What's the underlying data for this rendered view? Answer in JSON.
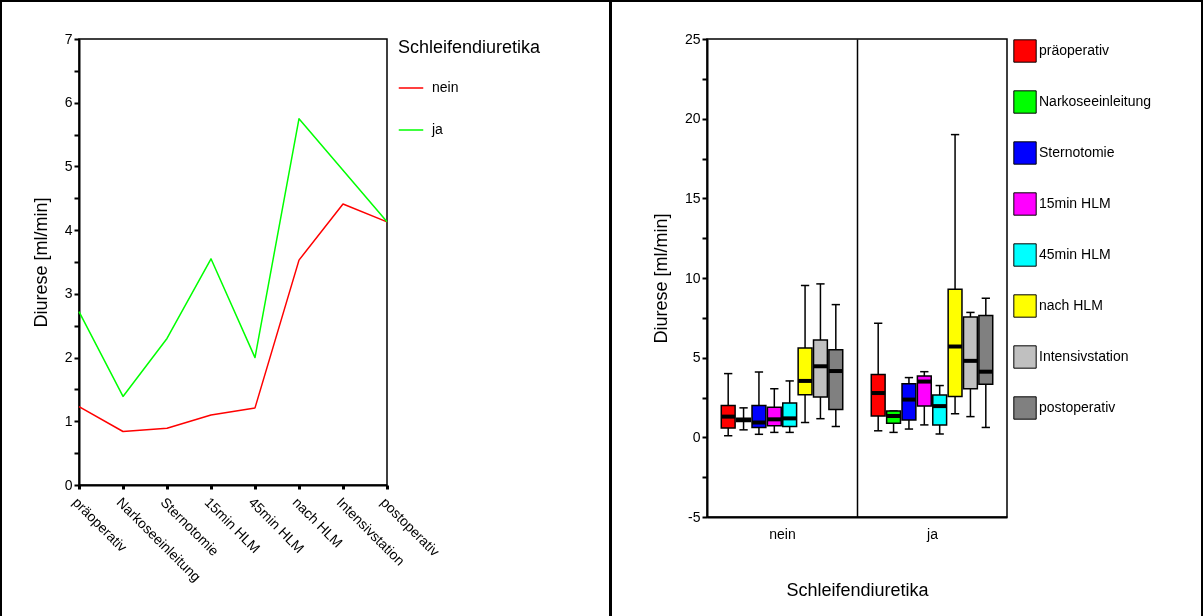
{
  "chart_data": [
    {
      "type": "line",
      "xlabel": null,
      "ylabel": "Diurese [ml/min]",
      "legend_title": "Schleifendiuretika",
      "legend": "right",
      "categories": [
        "präoperativ",
        "Narkoseeinleitung",
        "Sternotomie",
        "15min HLM",
        "45min HLM",
        "nach HLM",
        "Intensivstation",
        "postoperativ"
      ],
      "ylim": [
        0,
        7
      ],
      "yticks": [
        0,
        {
          "value": 0.5,
          "label": null
        },
        1,
        {
          "value": 1.5,
          "label": null
        },
        2,
        {
          "value": 2.5,
          "label": null
        },
        3,
        {
          "value": 3.5,
          "label": null
        },
        4,
        {
          "value": 4.5,
          "label": null
        },
        5,
        {
          "value": 5.5,
          "label": null
        },
        6,
        {
          "value": 6.5,
          "label": null
        },
        7
      ],
      "series": [
        {
          "name": "nein",
          "color": "#ff0000",
          "values": [
            1.23,
            0.84,
            0.89,
            1.1,
            1.21,
            3.53,
            4.41,
            4.13
          ]
        },
        {
          "name": "ja",
          "color": "#00ff00",
          "values": [
            2.72,
            1.39,
            2.3,
            3.55,
            2.0,
            5.75,
            4.94,
            4.13
          ]
        }
      ]
    },
    {
      "type": "box",
      "xlabel": "Schleifendiuretika",
      "ylabel": "Diurese [ml/min]",
      "legend": "right",
      "grid": "x",
      "categories": [
        "nein",
        "ja"
      ],
      "ylim": [
        -5,
        25
      ],
      "yticks": [
        -5,
        {
          "value": -2.5,
          "label": null
        },
        0,
        {
          "value": 2.5,
          "label": null
        },
        5,
        {
          "value": 7.5,
          "label": null
        },
        10,
        {
          "value": 12.5,
          "label": null
        },
        15,
        {
          "value": 17.5,
          "label": null
        },
        20,
        {
          "value": 22.5,
          "label": null
        },
        25
      ],
      "series": [
        {
          "name": "präoperativ",
          "color": "#ff0000",
          "boxes": [
            {
              "low": 0.1,
              "q1": 0.58,
              "median": 1.3,
              "q3": 2.0,
              "high": 4.0
            },
            {
              "low": 0.41,
              "q1": 1.34,
              "median": 2.78,
              "q3": 3.95,
              "high": 7.16
            }
          ]
        },
        {
          "name": "Narkoseeinleitung",
          "color": "#00ff00",
          "boxes": [
            {
              "low": 0.47,
              "q1": 0.99,
              "median": 1.09,
              "q3": 1.2,
              "high": 1.85
            },
            {
              "low": 0.31,
              "q1": 0.89,
              "median": 1.34,
              "q3": 1.65,
              "high": 1.65
            }
          ]
        },
        {
          "name": "Sternotomie",
          "color": "#0000ff",
          "boxes": [
            {
              "low": 0.19,
              "q1": 0.62,
              "median": 0.93,
              "q3": 2.0,
              "high": 4.1
            },
            {
              "low": 0.52,
              "q1": 1.09,
              "median": 2.37,
              "q3": 3.36,
              "high": 3.75
            }
          ]
        },
        {
          "name": "15min HLM",
          "color": "#ff00ff",
          "boxes": [
            {
              "low": 0.31,
              "q1": 0.72,
              "median": 1.13,
              "q3": 1.89,
              "high": 3.05
            },
            {
              "low": 0.78,
              "q1": 1.96,
              "median": 3.5,
              "q3": 3.85,
              "high": 4.12
            }
          ]
        },
        {
          "name": "45min HLM",
          "color": "#00ffff",
          "boxes": [
            {
              "low": 0.31,
              "q1": 0.68,
              "median": 1.19,
              "q3": 2.16,
              "high": 3.54
            },
            {
              "low": 0.21,
              "q1": 0.78,
              "median": 1.96,
              "q3": 2.65,
              "high": 3.25
            }
          ]
        },
        {
          "name": "nach HLM",
          "color": "#ffff00",
          "boxes": [
            {
              "low": 0.93,
              "q1": 2.67,
              "median": 3.54,
              "q3": 5.6,
              "high": 9.53
            },
            {
              "low": 1.48,
              "q1": 2.57,
              "median": 5.7,
              "q3": 9.3,
              "high": 19.0
            }
          ]
        },
        {
          "name": "Intensivstation",
          "color": "#c0c0c0",
          "boxes": [
            {
              "low": 1.17,
              "q1": 2.53,
              "median": 4.46,
              "q3": 6.11,
              "high": 9.63
            },
            {
              "low": 1.3,
              "q1": 3.05,
              "median": 4.8,
              "q3": 7.55,
              "high": 7.84
            }
          ]
        },
        {
          "name": "postoperativ",
          "color": "#808080",
          "boxes": [
            {
              "low": 0.68,
              "q1": 1.75,
              "median": 4.16,
              "q3": 5.49,
              "high": 8.33
            },
            {
              "low": 0.62,
              "q1": 3.33,
              "median": 4.12,
              "q3": 7.65,
              "high": 8.73
            }
          ]
        }
      ]
    }
  ]
}
